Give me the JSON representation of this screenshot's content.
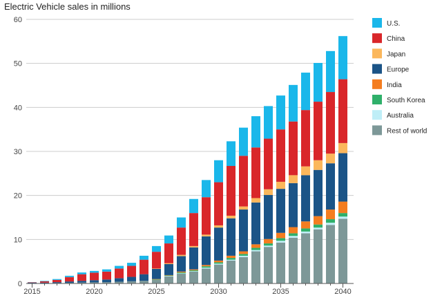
{
  "chart_data": {
    "type": "bar",
    "stacked": true,
    "title": "Electric Vehicle sales in millions",
    "xlabel": "",
    "ylabel": "",
    "ylim": [
      0,
      60
    ],
    "yticks": [
      0,
      10,
      20,
      30,
      40,
      50,
      60
    ],
    "grid": true,
    "legend_position": "right",
    "categories": [
      "2015",
      "2016",
      "2017",
      "2018",
      "2019",
      "2020",
      "2021",
      "2022",
      "2023",
      "2024",
      "2025",
      "2026",
      "2027",
      "2028",
      "2029",
      "2030",
      "2031",
      "2032",
      "2033",
      "2034",
      "2035",
      "2036",
      "2037",
      "2038",
      "2039",
      "2040"
    ],
    "xtick_labels": [
      "2015",
      "2020",
      "2025",
      "2030",
      "2035",
      "2040"
    ],
    "series": [
      {
        "name": "Rest of world",
        "color": "#7d9898",
        "values": [
          0.05,
          0.05,
          0.1,
          0.15,
          0.2,
          0.25,
          0.3,
          0.4,
          0.5,
          0.6,
          0.8,
          1.6,
          2.2,
          2.7,
          3.4,
          4.3,
          5.2,
          6.0,
          7.3,
          8.3,
          9.3,
          10.4,
          11.4,
          12.3,
          13.3,
          14.7
        ]
      },
      {
        "name": "Australia",
        "color": "#bfeef7",
        "values": [
          0,
          0,
          0,
          0,
          0,
          0,
          0,
          0,
          0,
          0,
          0,
          0.1,
          0.1,
          0.1,
          0.2,
          0.2,
          0.2,
          0.3,
          0.3,
          0.3,
          0.4,
          0.4,
          0.4,
          0.4,
          0.5,
          0.5
        ]
      },
      {
        "name": "South Korea",
        "color": "#2fb06a",
        "values": [
          0,
          0,
          0,
          0,
          0,
          0,
          0,
          0,
          0,
          0,
          0.1,
          0.1,
          0.2,
          0.2,
          0.3,
          0.3,
          0.4,
          0.4,
          0.5,
          0.5,
          0.6,
          0.6,
          0.7,
          0.7,
          0.8,
          0.8
        ]
      },
      {
        "name": "India",
        "color": "#f47d20",
        "values": [
          0,
          0,
          0,
          0,
          0,
          0,
          0,
          0,
          0,
          0,
          0.1,
          0.1,
          0.2,
          0.2,
          0.3,
          0.4,
          0.5,
          0.6,
          0.8,
          1.0,
          1.2,
          1.4,
          1.6,
          1.9,
          2.2,
          2.6
        ]
      },
      {
        "name": "Europe",
        "color": "#1b5487",
        "values": [
          0.1,
          0.15,
          0.2,
          0.3,
          0.4,
          0.5,
          0.6,
          0.8,
          1.0,
          1.5,
          2.3,
          2.5,
          3.5,
          5.0,
          6.5,
          7.5,
          8.5,
          9.5,
          9.5,
          10.0,
          10.0,
          10.0,
          10.5,
          10.5,
          10.5,
          11.0
        ]
      },
      {
        "name": "Japan",
        "color": "#fbb75c",
        "values": [
          0,
          0,
          0,
          0,
          0,
          0,
          0,
          0,
          0,
          0,
          0.1,
          0.2,
          0.3,
          0.3,
          0.4,
          0.5,
          0.6,
          0.7,
          1.0,
          1.3,
          1.6,
          1.8,
          2.0,
          2.2,
          2.2,
          2.3
        ]
      },
      {
        "name": "China",
        "color": "#d9262a",
        "values": [
          0.1,
          0.3,
          0.5,
          1.0,
          1.5,
          1.7,
          1.8,
          2.2,
          2.5,
          3.3,
          3.8,
          4.5,
          6.2,
          7.5,
          8.5,
          9.8,
          11.3,
          11.5,
          11.5,
          11.5,
          11.9,
          12.2,
          12.8,
          13.3,
          14.0,
          14.5
        ]
      },
      {
        "name": "U.S.",
        "color": "#1ab7ea",
        "values": [
          0.05,
          0.1,
          0.2,
          0.3,
          0.4,
          0.4,
          0.5,
          0.6,
          0.7,
          0.9,
          1.3,
          1.8,
          2.3,
          3.2,
          3.9,
          5.0,
          5.6,
          6.4,
          7.1,
          7.4,
          7.7,
          8.3,
          8.5,
          8.8,
          9.3,
          9.8
        ]
      }
    ],
    "legend_order": [
      "U.S.",
      "China",
      "Japan",
      "Europe",
      "India",
      "South Korea",
      "Australia",
      "Rest of world"
    ]
  }
}
